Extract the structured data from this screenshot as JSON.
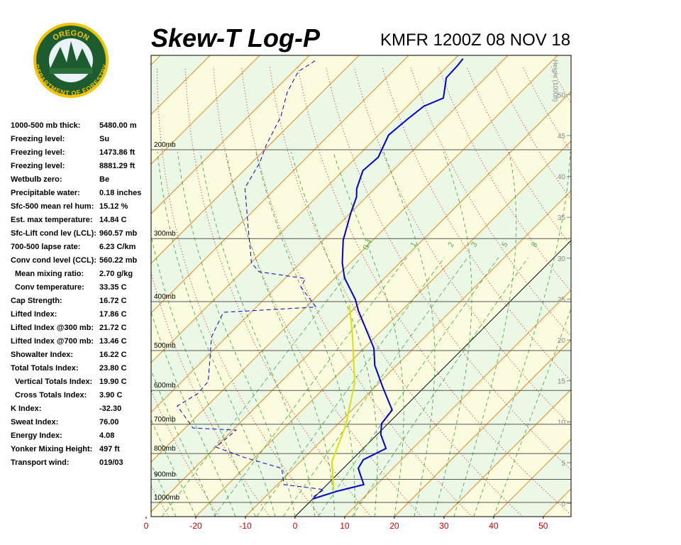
{
  "logo": {
    "top": "OREGON",
    "bottom": "DEPARTMENT OF FORESTRY"
  },
  "stats": {
    "rows": [
      [
        "1000-500 mb thick:",
        "5480.00 m"
      ],
      [
        "Freezing level:",
        "Su"
      ],
      [
        "Freezing level:",
        "1473.86 ft"
      ],
      [
        "Freezing level:",
        "8881.29 ft"
      ],
      [
        "Wetbulb zero:",
        "Be"
      ],
      [
        "Precipitable water:",
        "0.18 inches"
      ],
      [
        "Sfc-500 mean rel hum:",
        "15.12 %"
      ],
      [
        "Est. max temperature:",
        "14.84 C"
      ],
      [
        "Sfc-Lift cond lev (LCL):",
        "960.57 mb"
      ],
      [
        "700-500 lapse rate:",
        "6.23 C/km"
      ],
      [
        "Conv cond level (CCL):",
        "560.22 mb"
      ],
      [
        "Mean mixing ratio:",
        "2.70 g/kg"
      ],
      [
        "Conv temperature:",
        "33.35 C"
      ],
      [
        "Cap Strength:",
        "16.72 C"
      ],
      [
        "Lifted Index:",
        "17.86 C"
      ],
      [
        "Lifted Index @300 mb:",
        "21.72 C"
      ],
      [
        "Lifted Index @700 mb:",
        "13.46 C"
      ],
      [
        "Showalter Index:",
        "16.22 C"
      ],
      [
        "Total Totals Index:",
        "23.80 C"
      ],
      [
        "Vertical Totals Index:",
        "19.90 C"
      ],
      [
        "Cross Totals Index:",
        "3.90 C"
      ],
      [
        "K Index:",
        "-32.30"
      ],
      [
        "Sweat Index:",
        "76.00"
      ],
      [
        "Energy Index:",
        "4.08"
      ],
      [
        "Yonker Mixing Height:",
        "497 ft"
      ],
      [
        "Transport wind:",
        "019/03"
      ]
    ]
  },
  "chart_data": {
    "type": "skewt",
    "title": "Skew-T Log-P",
    "subtitle": "KMFR 1200Z 08 NOV 18",
    "xlim": [
      -29,
      55.6
    ],
    "ylim": [
      1067,
      130
    ],
    "xticks": [
      {
        "value": -30,
        "label": "0"
      },
      -20,
      -10,
      0,
      10,
      20,
      30,
      40,
      50
    ],
    "yticks": [
      {
        "value": 200,
        "label": "200mb"
      },
      {
        "value": 300,
        "label": "300mb"
      },
      {
        "value": 400,
        "label": "400mb"
      },
      {
        "value": 500,
        "label": "500mb"
      },
      {
        "value": 600,
        "label": "600mb"
      },
      {
        "value": 700,
        "label": "700mb"
      },
      {
        "value": 800,
        "label": "800mb"
      },
      {
        "value": 900,
        "label": "900mb"
      },
      {
        "value": 1000,
        "label": "1000mb"
      }
    ],
    "height_label": "Height (1000ft)",
    "height_lim": [
      -1.6,
      54.8
    ],
    "height_ticks": [
      0,
      5,
      10,
      15,
      20,
      25,
      30,
      35,
      40,
      45,
      50
    ],
    "mixing_ratio_labels": [
      0.4,
      1,
      2,
      3,
      5,
      8
    ],
    "series": [
      {
        "color": "#0000cc",
        "style": "solid",
        "pressure": [
          984,
          950,
          922,
          856,
          823,
          782,
          733,
          698,
          656,
          592,
          535,
          495,
          417,
          396,
          359,
          335,
          302,
          267,
          248,
          239,
          220,
          207,
          187,
          174,
          164,
          158,
          144,
          136,
          132
        ],
        "values": [
          0.0,
          3.4,
          7.4,
          3.0,
          2.3,
          4.6,
          0.7,
          -1.3,
          -1.9,
          -8.3,
          -14.4,
          -18.0,
          -28.7,
          -31.6,
          -38.1,
          -41.6,
          -46.0,
          -49.9,
          -52.0,
          -53.6,
          -56.0,
          -55.6,
          -58.0,
          -57.4,
          -56.7,
          -54.4,
          -57.9,
          -58.1,
          -58.4
        ]
      },
      {
        "color": "#0000cc",
        "style": "dashed",
        "pressure": [
          974,
          943,
          922,
          856,
          815,
          777,
          719,
          712,
          644,
          609,
          576,
          470,
          420,
          410,
          375,
          360,
          349,
          335,
          285,
          238,
          212,
          196,
          172,
          154,
          140,
          133
        ],
        "values": [
          -0.3,
          0.4,
          -8.7,
          -12.4,
          -22.0,
          -29.9,
          -29.3,
          -38.4,
          -46.0,
          -44.4,
          -44.7,
          -53.0,
          -55.6,
          -38.0,
          -44.9,
          -45.9,
          -56.6,
          -59.9,
          -67.7,
          -76.3,
          -78.4,
          -80.6,
          -83.4,
          -87.0,
          -89.0,
          -87.7
        ]
      },
      {
        "color": "#e0e000",
        "style": "solid",
        "pressure": [
          943,
          829,
          705,
          580,
          463,
          406
        ],
        "values": [
          2.3,
          -3.7,
          -8.1,
          -14.9,
          -25.3,
          -31.7
        ]
      }
    ]
  }
}
